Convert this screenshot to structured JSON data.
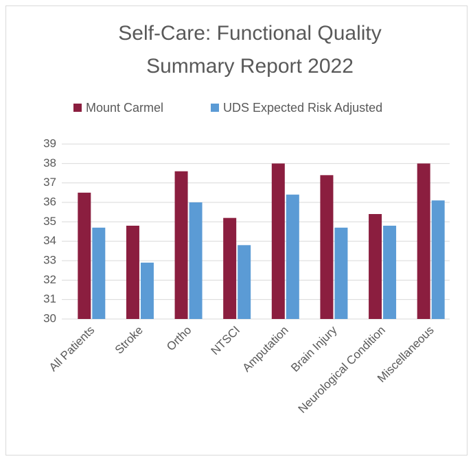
{
  "chart_data": {
    "type": "bar",
    "title": [
      "Self-Care: Functional Quality",
      "Summary Report 2022"
    ],
    "categories": [
      "All Patients",
      "Stroke",
      "Ortho",
      "NTSCI",
      "Amputation",
      "Brain Injury",
      "Neurological Condition",
      "Miscellaneous"
    ],
    "series": [
      {
        "name": "Mount Carmel",
        "color": "#8b1e3f",
        "values": [
          36.5,
          34.8,
          37.6,
          35.2,
          38.0,
          37.4,
          35.4,
          38.0
        ]
      },
      {
        "name": "UDS Expected Risk Adjusted",
        "color": "#5b9bd5",
        "values": [
          34.7,
          32.9,
          36.0,
          33.8,
          36.4,
          34.7,
          34.8,
          36.1
        ]
      }
    ],
    "ylim": [
      30,
      39
    ],
    "yticks": [
      30,
      31,
      32,
      33,
      34,
      35,
      36,
      37,
      38,
      39
    ],
    "grid": true,
    "legend": "top"
  }
}
